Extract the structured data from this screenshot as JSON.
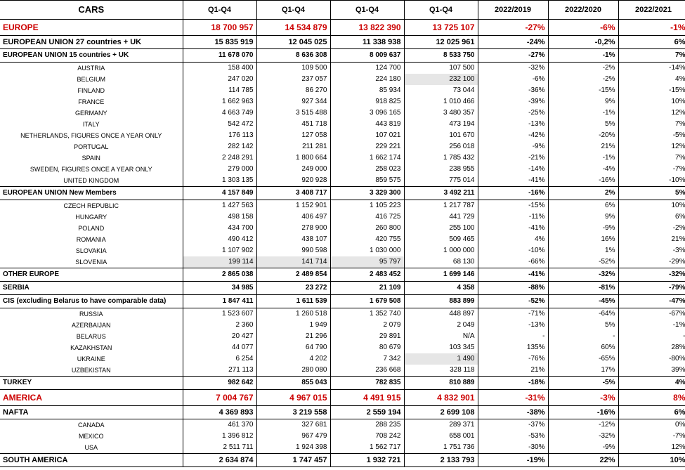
{
  "colors": {
    "continent": "#cc0000",
    "highlight": "#e6e6e6",
    "border": "#000000",
    "text": "#000000",
    "bg": "#ffffff"
  },
  "header": {
    "label": "CARS",
    "q1": "Q1-Q4",
    "q2": "Q1-Q4",
    "q3": "Q1-Q4",
    "q4": "Q1-Q4",
    "v1": "2022/2019",
    "v2": "2022/2020",
    "v3": "2022/2021"
  },
  "rows": [
    {
      "type": "continent",
      "label": "EUROPE",
      "c": [
        "18 700 957",
        "14 534 879",
        "13 822 390",
        "13 725 107",
        "-27%",
        "-6%",
        "-1%"
      ]
    },
    {
      "type": "section",
      "label": "EUROPEAN UNION 27 countries + UK",
      "c": [
        "15 835 919",
        "12 045 025",
        "11 338 938",
        "12 025 961",
        "-24%",
        "-0,2%",
        "6%"
      ]
    },
    {
      "type": "section-light",
      "label": "EUROPEAN UNION 15 countries + UK",
      "c": [
        "11 678 070",
        "8 636 308",
        "8 009 637",
        "8 533 750",
        "-27%",
        "-1%",
        "7%"
      ]
    },
    {
      "type": "detail",
      "label": "AUSTRIA",
      "c": [
        "158 400",
        "109 500",
        "124 700",
        "107 500",
        "-32%",
        "-2%",
        "-14%"
      ]
    },
    {
      "type": "detail",
      "label": "BELGIUM",
      "c": [
        "247 020",
        "237 057",
        "224 180",
        "232 100",
        "-6%",
        "-2%",
        "4%"
      ],
      "hl": [
        3
      ]
    },
    {
      "type": "detail",
      "label": "FINLAND",
      "c": [
        "114 785",
        "86 270",
        "85 934",
        "73 044",
        "-36%",
        "-15%",
        "-15%"
      ]
    },
    {
      "type": "detail",
      "label": "FRANCE",
      "c": [
        "1 662 963",
        "927 344",
        "918 825",
        "1 010 466",
        "-39%",
        "9%",
        "10%"
      ]
    },
    {
      "type": "detail",
      "label": "GERMANY",
      "c": [
        "4 663 749",
        "3 515 488",
        "3 096 165",
        "3 480 357",
        "-25%",
        "-1%",
        "12%"
      ]
    },
    {
      "type": "detail",
      "label": "ITALY",
      "c": [
        "542 472",
        "451 718",
        "443 819",
        "473 194",
        "-13%",
        "5%",
        "7%"
      ]
    },
    {
      "type": "detail",
      "label": "NETHERLANDS,  FIGURES ONCE A YEAR ONLY",
      "c": [
        "176 113",
        "127 058",
        "107 021",
        "101 670",
        "-42%",
        "-20%",
        "-5%"
      ]
    },
    {
      "type": "detail",
      "label": "PORTUGAL",
      "c": [
        "282 142",
        "211 281",
        "229 221",
        "256 018",
        "-9%",
        "21%",
        "12%"
      ]
    },
    {
      "type": "detail",
      "label": "SPAIN",
      "c": [
        "2 248 291",
        "1 800 664",
        "1 662 174",
        "1 785 432",
        "-21%",
        "-1%",
        "7%"
      ]
    },
    {
      "type": "detail",
      "label": "SWEDEN, FIGURES ONCE A YEAR ONLY",
      "c": [
        "279 000",
        "249 000",
        "258 023",
        "238 955",
        "-14%",
        "-4%",
        "-7%"
      ]
    },
    {
      "type": "detail",
      "label": "UNITED KINGDOM",
      "c": [
        "1 303 135",
        "920 928",
        "859 575",
        "775 014",
        "-41%",
        "-16%",
        "-10%"
      ]
    },
    {
      "type": "section-light",
      "label": "EUROPEAN UNION New Members",
      "c": [
        "4 157 849",
        "3 408 717",
        "3 329 300",
        "3 492 211",
        "-16%",
        "2%",
        "5%"
      ]
    },
    {
      "type": "detail",
      "label": "CZECH REPUBLIC",
      "c": [
        "1 427 563",
        "1 152 901",
        "1 105 223",
        "1 217 787",
        "-15%",
        "6%",
        "10%"
      ]
    },
    {
      "type": "detail",
      "label": "HUNGARY",
      "c": [
        "498 158",
        "406 497",
        "416 725",
        "441 729",
        "-11%",
        "9%",
        "6%"
      ]
    },
    {
      "type": "detail",
      "label": "POLAND",
      "c": [
        "434 700",
        "278 900",
        "260 800",
        "255 100",
        "-41%",
        "-9%",
        "-2%"
      ]
    },
    {
      "type": "detail",
      "label": "ROMANIA",
      "c": [
        "490 412",
        "438 107",
        "420 755",
        "509 465",
        "4%",
        "16%",
        "21%"
      ]
    },
    {
      "type": "detail",
      "label": "SLOVAKIA",
      "c": [
        "1 107 902",
        "990 598",
        "1 030 000",
        "1 000 000",
        "-10%",
        "1%",
        "-3%"
      ]
    },
    {
      "type": "detail",
      "label": "SLOVENIA",
      "c": [
        "199 114",
        "141 714",
        "95 797",
        "68 130",
        "-66%",
        "-52%",
        "-29%"
      ],
      "hl": [
        0,
        1,
        2
      ]
    },
    {
      "type": "section-light",
      "label": "OTHER EUROPE",
      "c": [
        "2 865 038",
        "2 489 854",
        "2 483 452",
        "1 699 146",
        "-41%",
        "-32%",
        "-32%"
      ]
    },
    {
      "type": "section-light",
      "label": "SERBIA",
      "c": [
        "34 985",
        "23 272",
        "21 109",
        "4 358",
        "-88%",
        "-81%",
        "-79%"
      ]
    },
    {
      "type": "section-light",
      "label": "CIS (excluding Belarus to have comparable data)",
      "c": [
        "1 847 411",
        "1 611 539",
        "1 679 508",
        "883 899",
        "-52%",
        "-45%",
        "-47%"
      ]
    },
    {
      "type": "detail",
      "label": "RUSSIA",
      "c": [
        "1 523 607",
        "1 260 518",
        "1 352 740",
        "448 897",
        "-71%",
        "-64%",
        "-67%"
      ]
    },
    {
      "type": "detail",
      "label": "AZERBAIJAN",
      "c": [
        "2 360",
        "1 949",
        "2 079",
        "2 049",
        "-13%",
        "5%",
        "-1%"
      ]
    },
    {
      "type": "detail",
      "label": "BELARUS",
      "c": [
        "20 427",
        "21 296",
        "29 891",
        "N/A",
        "-",
        "-",
        "-"
      ]
    },
    {
      "type": "detail",
      "label": "KAZAKHSTAN",
      "c": [
        "44 077",
        "64 790",
        "80 679",
        "103 345",
        "135%",
        "60%",
        "28%"
      ]
    },
    {
      "type": "detail",
      "label": "UKRAINE",
      "c": [
        "6 254",
        "4 202",
        "7 342",
        "1 490",
        "-76%",
        "-65%",
        "-80%"
      ],
      "hl": [
        3
      ]
    },
    {
      "type": "detail",
      "label": "UZBEKISTAN",
      "c": [
        "271 113",
        "280 080",
        "236 668",
        "328 118",
        "21%",
        "17%",
        "39%"
      ]
    },
    {
      "type": "section-light",
      "label": "TURKEY",
      "c": [
        "982 642",
        "855 043",
        "782 835",
        "810 889",
        "-18%",
        "-5%",
        "4%"
      ]
    },
    {
      "type": "continent",
      "label": "AMERICA",
      "c": [
        "7 004 767",
        "4 967 015",
        "4 491 915",
        "4 832 901",
        "-31%",
        "-3%",
        "8%"
      ]
    },
    {
      "type": "section",
      "label": "NAFTA",
      "c": [
        "4 369 893",
        "3 219 558",
        "2 559 194",
        "2 699 108",
        "-38%",
        "-16%",
        "6%"
      ]
    },
    {
      "type": "detail",
      "label": "CANADA",
      "c": [
        "461 370",
        "327 681",
        "288 235",
        "289 371",
        "-37%",
        "-12%",
        "0%"
      ]
    },
    {
      "type": "detail",
      "label": "MEXICO",
      "c": [
        "1 396 812",
        "967 479",
        "708 242",
        "658 001",
        "-53%",
        "-32%",
        "-7%"
      ]
    },
    {
      "type": "detail",
      "label": "USA",
      "c": [
        "2 511 711",
        "1 924 398",
        "1 562 717",
        "1 751 736",
        "-30%",
        "-9%",
        "12%"
      ]
    },
    {
      "type": "section",
      "label": "SOUTH AMERICA",
      "c": [
        "2 634 874",
        "1 747 457",
        "1 932 721",
        "2 133 793",
        "-19%",
        "22%",
        "10%"
      ]
    }
  ]
}
